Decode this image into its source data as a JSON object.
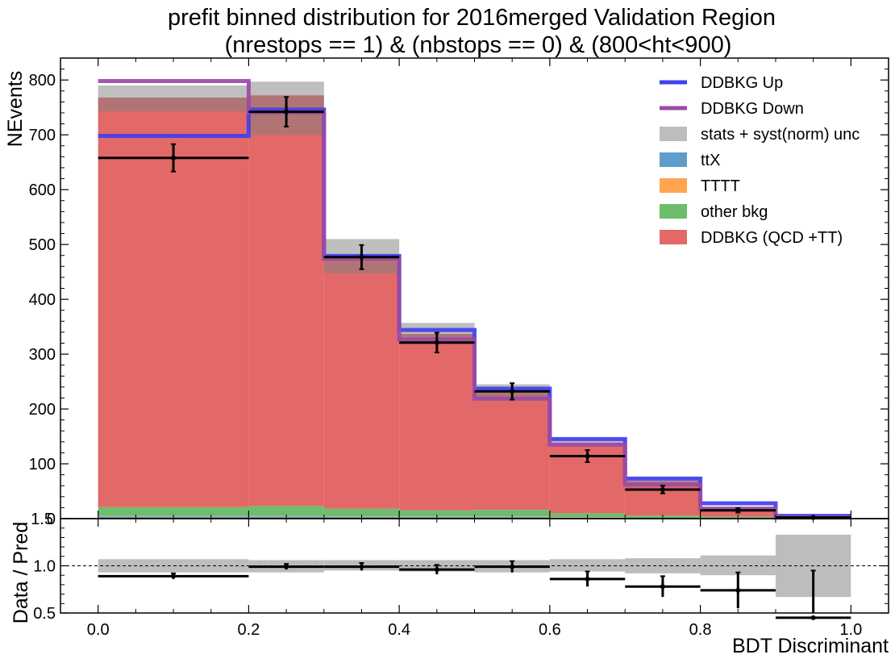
{
  "title": {
    "line1": "prefit binned distribution for 2016merged Validation Region",
    "line2": "(nrestops == 1) & (nbstops == 0) & (800<ht<900)"
  },
  "chart_data": {
    "type": "bar",
    "stacked": true,
    "bin_edges": [
      0.0,
      0.2,
      0.3,
      0.4,
      0.5,
      0.6,
      0.7,
      0.8,
      0.9,
      1.0
    ],
    "xlabel": "BDT Discriminant",
    "ylabel": "NEvents",
    "xlim": [
      -0.05,
      1.05
    ],
    "ylim": [
      0,
      840
    ],
    "xticks": [
      "0.0",
      "0.2",
      "0.4",
      "0.6",
      "0.8",
      "1.0"
    ],
    "yticks": [
      "0",
      "100",
      "200",
      "300",
      "400",
      "500",
      "600",
      "700",
      "800"
    ],
    "top_tick_label": "1.5",
    "legend_position": "top-right",
    "stack": [
      {
        "name": "ttX",
        "color": "#5f9ecc",
        "values": [
          4,
          4,
          3,
          3,
          3,
          2,
          1,
          1,
          0
        ]
      },
      {
        "name": "TTTT",
        "color": "#ffa54f",
        "values": [
          1,
          1,
          1,
          1,
          1,
          1,
          0.5,
          0.5,
          0.2
        ]
      },
      {
        "name": "other bkg",
        "color": "#6cbd6c",
        "values": [
          16,
          18,
          14,
          11,
          12,
          7,
          4,
          2,
          1
        ]
      },
      {
        "name": "DDBKG (QCD +TT)",
        "color": "#e36868",
        "values": [
          747,
          749,
          458,
          322,
          214,
          127,
          63,
          15,
          2
        ]
      }
    ],
    "unc_band": {
      "name": "stats + syst(norm) unc",
      "color": "#bdbdbd",
      "low": [
        743,
        700,
        447,
        320,
        215,
        133,
        60,
        15,
        2
      ],
      "high": [
        790,
        797,
        510,
        357,
        245,
        146,
        75,
        22,
        8
      ]
    },
    "lines": [
      {
        "name": "DDBKG Up",
        "color": "#4040ee",
        "values": [
          698,
          746,
          479,
          344,
          237,
          145,
          73,
          28,
          5
        ]
      },
      {
        "name": "DDBKG Down",
        "color": "#9b4aa6",
        "values": [
          798,
          741,
          474,
          327,
          219,
          135,
          62,
          18,
          2
        ]
      }
    ],
    "data_points": {
      "values": [
        658,
        742,
        477,
        321,
        232,
        114,
        53,
        15,
        2
      ],
      "errors": [
        25,
        27,
        22,
        18,
        15,
        11,
        7,
        4,
        1.5
      ]
    },
    "ratio": {
      "ylabel": "Data / Pred",
      "ylim": [
        0.5,
        1.5
      ],
      "yticks": [
        "0.5",
        "1.0"
      ],
      "band_low": [
        0.93,
        0.93,
        0.95,
        0.94,
        0.93,
        0.94,
        0.92,
        0.9,
        0.67
      ],
      "band_high": [
        1.07,
        1.06,
        1.06,
        1.06,
        1.06,
        1.07,
        1.08,
        1.11,
        1.33
      ],
      "values": [
        0.89,
        0.99,
        0.99,
        0.96,
        0.99,
        0.86,
        0.78,
        0.74,
        0.45
      ],
      "errors": [
        0.03,
        0.03,
        0.04,
        0.05,
        0.06,
        0.08,
        0.11,
        0.19,
        0.5
      ]
    }
  }
}
